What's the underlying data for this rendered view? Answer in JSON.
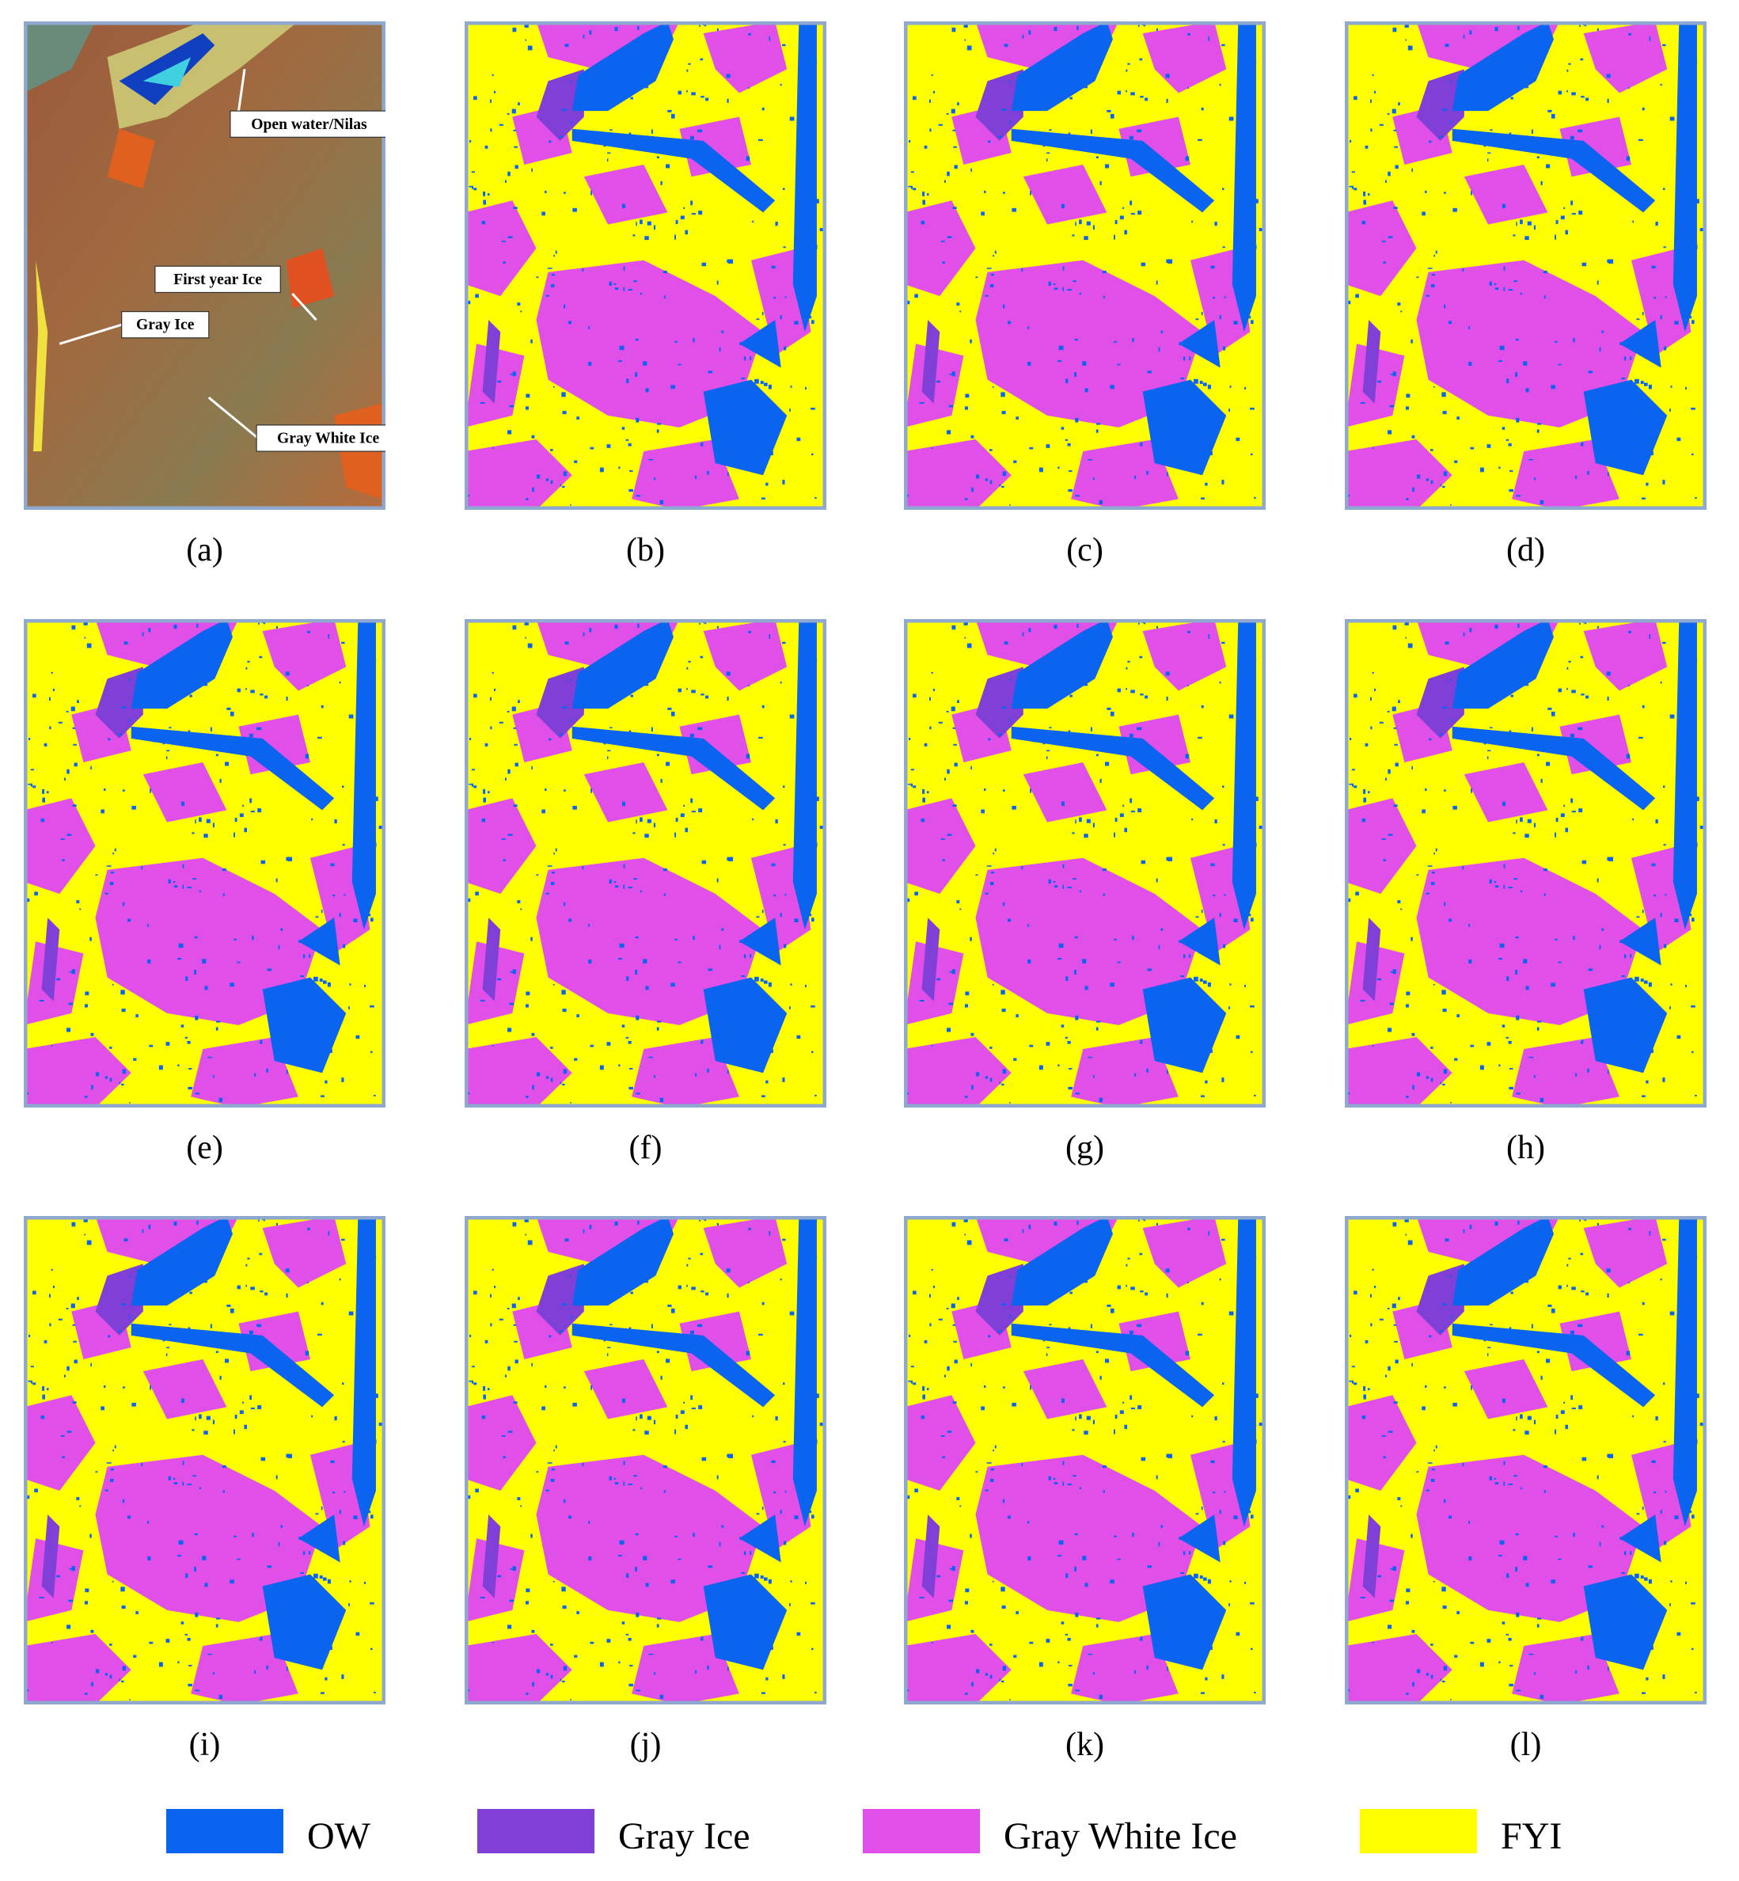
{
  "panels": [
    {
      "label": "(a)",
      "annotations": [
        "Open water/Nilas",
        "First year Ice",
        "Gray Ice",
        "Gray White Ice"
      ]
    },
    {
      "label": "(b)"
    },
    {
      "label": "(c)"
    },
    {
      "label": "(d)"
    },
    {
      "label": "(e)"
    },
    {
      "label": "(f)"
    },
    {
      "label": "(g)"
    },
    {
      "label": "(h)"
    },
    {
      "label": "(i)"
    },
    {
      "label": "(j)"
    },
    {
      "label": "(k)"
    },
    {
      "label": "(l)"
    }
  ],
  "legend": [
    {
      "name": "OW",
      "color": "#0a64f0"
    },
    {
      "name": "Gray Ice",
      "color": "#8040d8"
    },
    {
      "name": "Gray White Ice",
      "color": "#e050e8"
    },
    {
      "name": "FYI",
      "color": "#ffff00"
    }
  ]
}
